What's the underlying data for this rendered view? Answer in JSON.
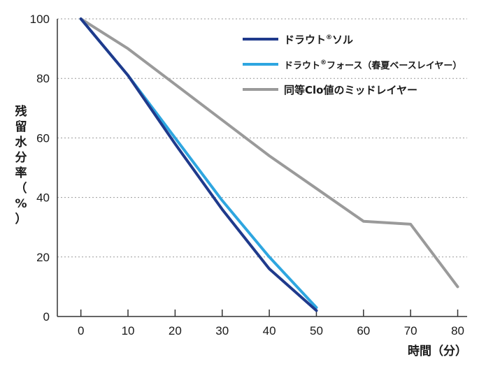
{
  "chart_data": {
    "type": "line",
    "xlabel": "時間（分）",
    "ylabel": "残留水分率（%）",
    "xlim": [
      -5,
      82
    ],
    "ylim": [
      0,
      100
    ],
    "x_ticks": [
      0,
      10,
      20,
      30,
      40,
      50,
      60,
      70,
      80
    ],
    "y_ticks": [
      0,
      20,
      40,
      60,
      80,
      100
    ],
    "y_grid": true,
    "legend_position": "top-right",
    "series": [
      {
        "name": "ドラウト®ソル",
        "legend_parts": [
          "ドラウト",
          "®",
          "ソル",
          ""
        ],
        "color": "#1f3a8c",
        "points": [
          [
            0,
            100
          ],
          [
            10,
            81
          ],
          [
            20,
            58
          ],
          [
            30,
            36
          ],
          [
            40,
            16
          ],
          [
            50,
            2
          ]
        ]
      },
      {
        "name": "ドラウト®フォース（春夏ベースレイヤー）",
        "legend_parts": [
          "ドラウト",
          "®",
          "フォース",
          "（春夏ベースレイヤー）"
        ],
        "color": "#2ea6e0",
        "points": [
          [
            0,
            100
          ],
          [
            10,
            81
          ],
          [
            20,
            60
          ],
          [
            30,
            39
          ],
          [
            40,
            20
          ],
          [
            50,
            3
          ]
        ]
      },
      {
        "name": "同等Clo値のミッドレイヤー",
        "legend_parts": [
          "同等Clo値のミッドレイヤー",
          "",
          "",
          ""
        ],
        "color": "#9a9a9a",
        "points": [
          [
            0,
            100
          ],
          [
            10,
            90
          ],
          [
            20,
            78
          ],
          [
            30,
            66
          ],
          [
            40,
            54
          ],
          [
            50,
            43
          ],
          [
            60,
            32
          ],
          [
            70,
            31
          ],
          [
            80,
            10
          ]
        ]
      }
    ]
  }
}
